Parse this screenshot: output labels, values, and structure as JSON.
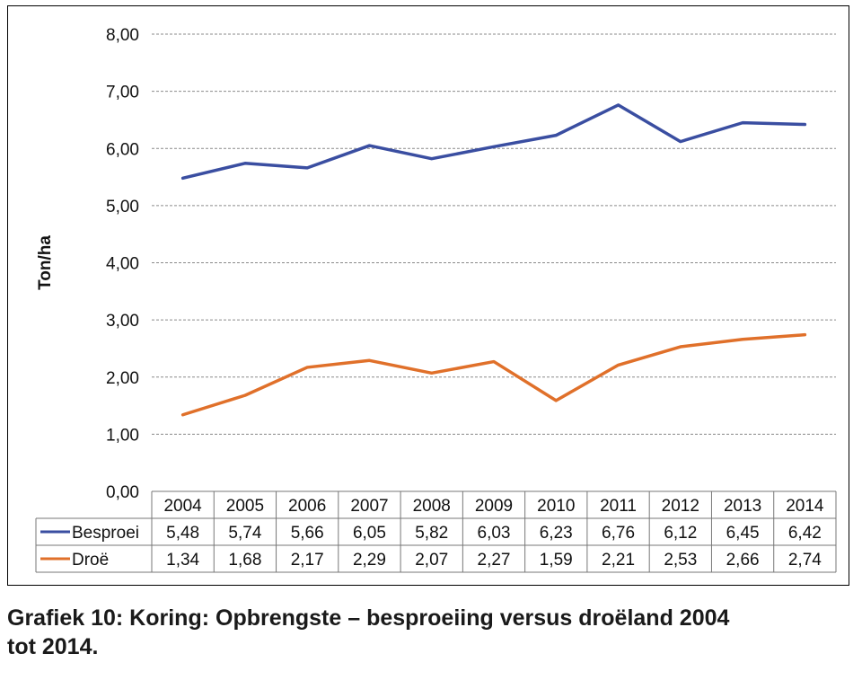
{
  "chart_data": {
    "type": "line",
    "title": "",
    "xlabel": "",
    "ylabel": "Ton/ha",
    "ylim": [
      0,
      8
    ],
    "y_ticks": [
      "0,00",
      "1,00",
      "2,00",
      "3,00",
      "4,00",
      "5,00",
      "6,00",
      "7,00",
      "8,00"
    ],
    "grid": "horizontal dashed",
    "legend": "data table below plot",
    "categories": [
      "2004",
      "2005",
      "2006",
      "2007",
      "2008",
      "2009",
      "2010",
      "2011",
      "2012",
      "2013",
      "2014"
    ],
    "series": [
      {
        "name": "Besproei",
        "color": "#3a4ea1",
        "values": [
          5.48,
          5.74,
          5.66,
          6.05,
          5.82,
          6.03,
          6.23,
          6.76,
          6.12,
          6.45,
          6.42
        ],
        "labels": [
          "5,48",
          "5,74",
          "5,66",
          "6,05",
          "5,82",
          "6,03",
          "6,23",
          "6,76",
          "6,12",
          "6,45",
          "6,42"
        ]
      },
      {
        "name": "Droë",
        "color": "#e0702a",
        "values": [
          1.34,
          1.68,
          2.17,
          2.29,
          2.07,
          2.27,
          1.59,
          2.21,
          2.53,
          2.66,
          2.74
        ],
        "labels": [
          "1,34",
          "1,68",
          "2,17",
          "2,29",
          "2,07",
          "2,27",
          "1,59",
          "2,21",
          "2,53",
          "2,66",
          "2,74"
        ]
      }
    ]
  },
  "caption": {
    "line1": "Grafiek 10: Koring: Opbrengste – besproeiing versus droëland 2004",
    "line2": "tot 2014."
  }
}
